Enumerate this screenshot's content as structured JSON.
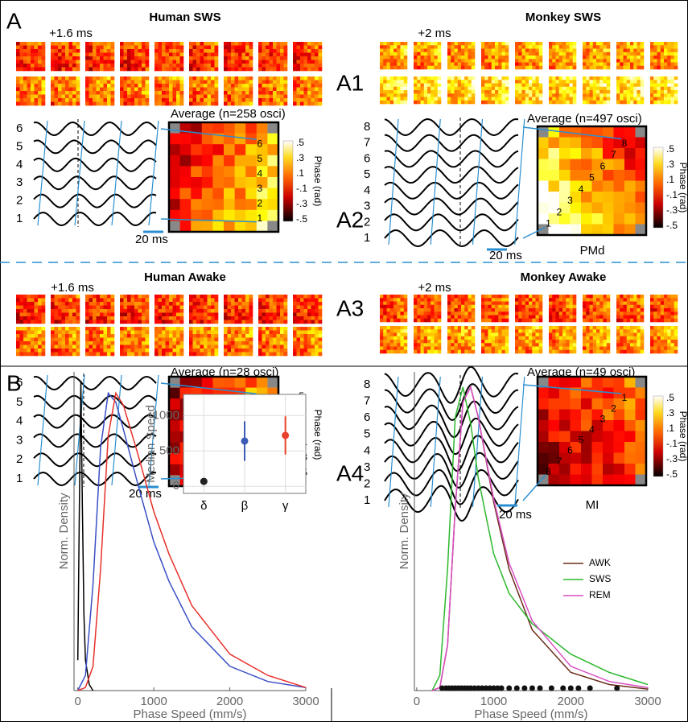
{
  "panel_a": {
    "label": "A",
    "rows": [
      "A1",
      "A2",
      "A3",
      "A4"
    ],
    "colorbar": {
      "title": "Phase (rad)",
      "ticks": [
        ".5",
        ".3",
        ".1",
        "-.1",
        "-.3",
        "-.5"
      ]
    },
    "scale_bar": "20 ms",
    "quadrants": [
      {
        "title": "Human SWS",
        "lag": "+1.6 ms",
        "average": "Average (n=258 osci)",
        "channels": [
          1,
          2,
          3,
          4,
          5,
          6
        ]
      },
      {
        "title": "Monkey SWS",
        "lag": "+2 ms",
        "average": "Average (n=497 osci)",
        "channels": [
          1,
          2,
          3,
          4,
          5,
          6,
          7,
          8
        ],
        "area": "PMd"
      },
      {
        "title": "Human Awake",
        "lag": "+1.6 ms",
        "average": "Average (n=28 osci)",
        "channels": [
          1,
          2,
          3,
          4,
          5,
          6
        ]
      },
      {
        "title": "Monkey Awake",
        "lag": "+2 ms",
        "average": "Average (n=49 osci)",
        "channels": [
          1,
          2,
          3,
          4,
          5,
          6,
          7,
          8
        ],
        "area": "MI"
      }
    ]
  },
  "panel_b": {
    "label": "B"
  },
  "chart_data": [
    {
      "type": "line",
      "xlabel": "Phase Speed (mm/s)",
      "ylabel": "Norm. Density",
      "xlim": [
        -50,
        3000
      ],
      "xticks": [
        0,
        1000,
        2000,
        3000
      ],
      "ylim": [
        0,
        1.05
      ],
      "series": [
        {
          "color": "#000000",
          "x": [
            0,
            20,
            40,
            60,
            80,
            100,
            150,
            200
          ],
          "values": [
            0.1,
            0.6,
            1.02,
            0.6,
            0.25,
            0.1,
            0.02,
            0
          ]
        },
        {
          "color": "#3b4fc4",
          "x": [
            0,
            100,
            200,
            300,
            400,
            500,
            600,
            800,
            1000,
            1200,
            1500,
            2000,
            2500,
            3000
          ],
          "values": [
            0,
            0.05,
            0.35,
            0.8,
            0.98,
            0.95,
            0.86,
            0.67,
            0.49,
            0.36,
            0.21,
            0.08,
            0.03,
            0.01
          ]
        },
        {
          "color": "#e8302a",
          "x": [
            0,
            100,
            200,
            300,
            400,
            500,
            600,
            800,
            1000,
            1200,
            1500,
            2000,
            2500,
            3000
          ],
          "values": [
            0,
            0.01,
            0.08,
            0.4,
            0.84,
            0.98,
            0.94,
            0.77,
            0.59,
            0.45,
            0.28,
            0.12,
            0.05,
            0.01
          ]
        }
      ]
    },
    {
      "type": "point",
      "ylabel": "Median Speed",
      "categories": [
        "δ",
        "β",
        "γ"
      ],
      "values": [
        70,
        640,
        720
      ],
      "errors": [
        20,
        280,
        270
      ],
      "colors": [
        "#222222",
        "#3b5bb5",
        "#e8402a"
      ],
      "ylim": [
        -100,
        1300
      ],
      "yticks": [
        0,
        500,
        1000
      ],
      "grid": true
    },
    {
      "type": "line",
      "xlabel": "Phase Speed (mm/s)",
      "ylabel": "Norm. Density",
      "xlim": [
        -30,
        3000
      ],
      "xticks": [
        0,
        1000,
        2000,
        3000
      ],
      "ylim": [
        0,
        1.05
      ],
      "legend": "right",
      "series": [
        {
          "name": "AWK",
          "color": "#6b2d1a",
          "x": [
            200,
            300,
            400,
            500,
            600,
            700,
            800,
            1000,
            1200,
            1500,
            2000,
            2500,
            3000
          ],
          "values": [
            0,
            0.01,
            0.15,
            0.6,
            0.95,
            1.0,
            0.9,
            0.62,
            0.4,
            0.2,
            0.06,
            0.02,
            0.005
          ]
        },
        {
          "name": "SWS",
          "color": "#2db82d",
          "x": [
            200,
            300,
            400,
            500,
            600,
            700,
            800,
            1000,
            1200,
            1500,
            2000,
            2500,
            3000
          ],
          "values": [
            0,
            0.05,
            0.4,
            0.9,
            1.0,
            0.88,
            0.7,
            0.45,
            0.32,
            0.22,
            0.12,
            0.06,
            0.02
          ]
        },
        {
          "name": "REM",
          "color": "#d94fc4",
          "x": [
            200,
            300,
            400,
            500,
            600,
            700,
            800,
            1000,
            1200,
            1500,
            2000,
            2500,
            3000
          ],
          "values": [
            0,
            0.01,
            0.15,
            0.6,
            0.95,
            1.0,
            0.9,
            0.63,
            0.42,
            0.23,
            0.08,
            0.03,
            0.01
          ]
        }
      ],
      "rug": {
        "color": "#111111",
        "x": [
          330,
          380,
          420,
          460,
          500,
          540,
          580,
          620,
          660,
          700,
          750,
          800,
          850,
          900,
          950,
          1000,
          1050,
          1100,
          1200,
          1300,
          1400,
          1500,
          1600,
          1750,
          1900,
          2000,
          2100,
          2250,
          2600
        ]
      }
    }
  ]
}
